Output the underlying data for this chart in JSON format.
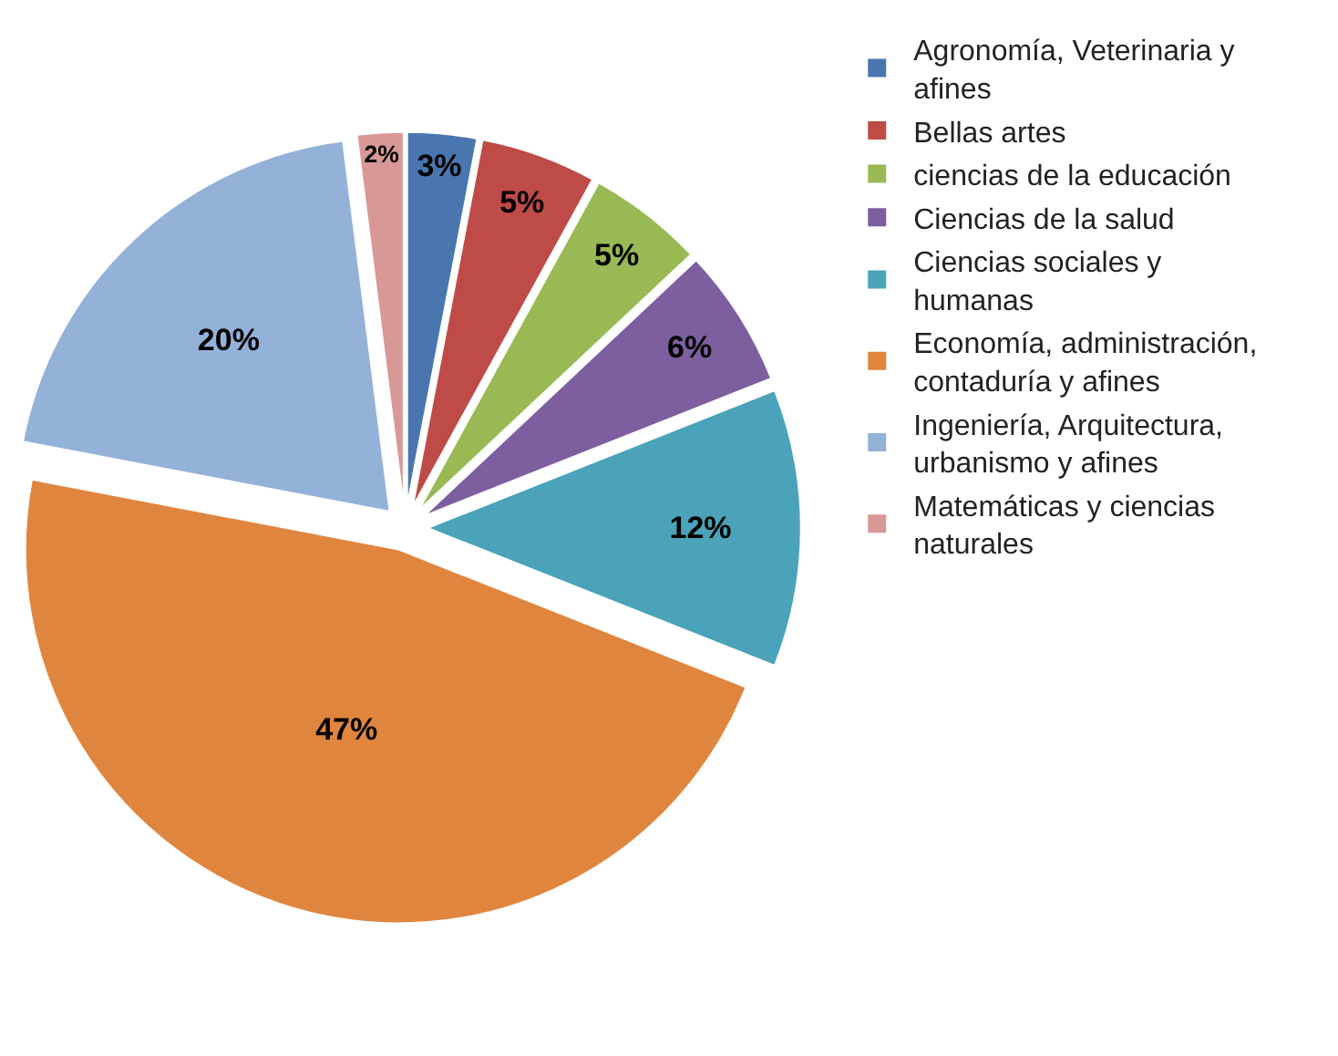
{
  "chart_data": {
    "type": "pie",
    "categories": [
      "Agronomía, Veterinaria y afines",
      "Bellas artes",
      "ciencias de la educación",
      "Ciencias de la salud",
      "Ciencias sociales y humanas",
      "Economía, administración, contaduría y afines",
      "Ingeniería, Arquitectura, urbanismo y afines",
      "Matemáticas y ciencias naturales"
    ],
    "values": [
      3,
      5,
      5,
      6,
      12,
      47,
      20,
      2
    ],
    "value_labels": [
      "3%",
      "5%",
      "5%",
      "6%",
      "12%",
      "47%",
      "20%",
      "2%"
    ],
    "colors": [
      "#4a76b0",
      "#be4b48",
      "#98b954",
      "#7d5fa0",
      "#4aa3b8",
      "#e0853e",
      "#94b1d8",
      "#d89896"
    ],
    "legend": "right"
  }
}
